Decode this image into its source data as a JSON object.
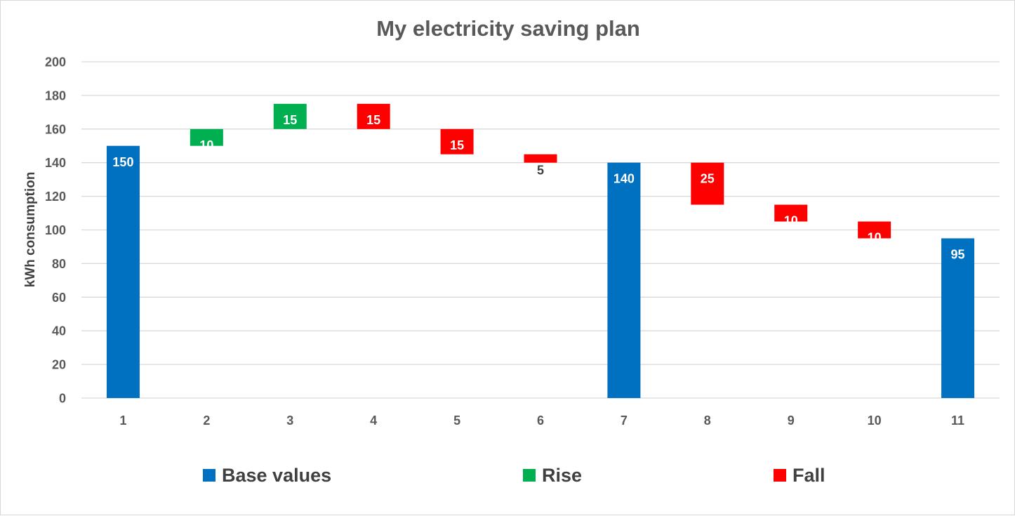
{
  "chart_data": {
    "type": "bar",
    "subtype": "waterfall",
    "title": "My electricity saving plan",
    "xlabel": "",
    "ylabel": "kWh consumption",
    "ylim": [
      0,
      200
    ],
    "yticks": [
      0,
      20,
      40,
      60,
      80,
      100,
      120,
      140,
      160,
      180,
      200
    ],
    "grid": true,
    "legend_position": "bottom",
    "categories": [
      "1",
      "2",
      "3",
      "4",
      "5",
      "6",
      "7",
      "8",
      "9",
      "10",
      "11"
    ],
    "steps": [
      {
        "x": "1",
        "kind": "Base values",
        "start": 0,
        "end": 150,
        "label": "150"
      },
      {
        "x": "2",
        "kind": "Rise",
        "start": 150,
        "end": 160,
        "label": "10"
      },
      {
        "x": "3",
        "kind": "Rise",
        "start": 160,
        "end": 175,
        "label": "15"
      },
      {
        "x": "4",
        "kind": "Fall",
        "start": 175,
        "end": 160,
        "label": "15"
      },
      {
        "x": "5",
        "kind": "Fall",
        "start": 160,
        "end": 145,
        "label": "15"
      },
      {
        "x": "6",
        "kind": "Fall",
        "start": 145,
        "end": 140,
        "label": "5"
      },
      {
        "x": "7",
        "kind": "Base values",
        "start": 0,
        "end": 140,
        "label": "140"
      },
      {
        "x": "8",
        "kind": "Fall",
        "start": 140,
        "end": 115,
        "label": "25"
      },
      {
        "x": "9",
        "kind": "Fall",
        "start": 115,
        "end": 105,
        "label": "10"
      },
      {
        "x": "10",
        "kind": "Fall",
        "start": 105,
        "end": 95,
        "label": "10"
      },
      {
        "x": "11",
        "kind": "Base values",
        "start": 0,
        "end": 95,
        "label": "95"
      }
    ],
    "series": [
      {
        "name": "Base values",
        "color": "#0070c0"
      },
      {
        "name": "Rise",
        "color": "#00b050"
      },
      {
        "name": "Fall",
        "color": "#ff0000"
      }
    ]
  },
  "colors": {
    "grid": "#d9d9d9",
    "axis_text": "#595959",
    "title_text": "#595959",
    "inside_label": "#ffffff",
    "outside_label": "#404040"
  }
}
